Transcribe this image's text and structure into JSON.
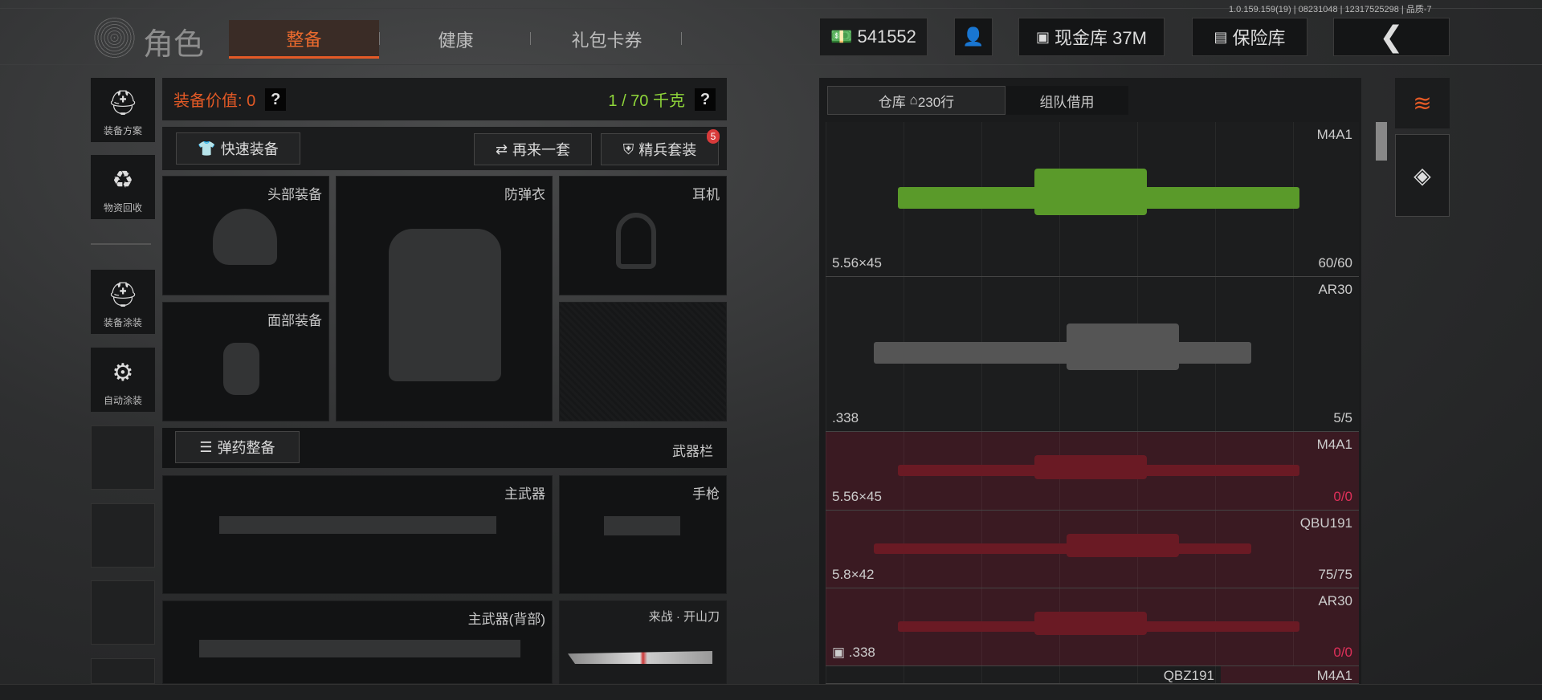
{
  "version_text": "1.0.159.159(19) | 08231048 | 12317525298 | 品质-7",
  "header": {
    "title": "角色",
    "tabs": [
      {
        "label": "整备",
        "active": true
      },
      {
        "label": "健康"
      },
      {
        "label": "礼包卡券"
      }
    ]
  },
  "topbar": {
    "money": "541552",
    "cash_vault": "现金库 37M",
    "safe": "保险库"
  },
  "sidebar": {
    "items": [
      {
        "label": "装备方案"
      },
      {
        "label": "物资回收"
      },
      {
        "label": "装备涂装"
      },
      {
        "label": "自动涂装"
      }
    ]
  },
  "loadout": {
    "value_label": "装备价值: 0",
    "weight_label": "1 / 70 千克",
    "help": "?",
    "quick_equip": "快速装备",
    "again": "再来一套",
    "elite": "精兵套装",
    "elite_badge": "5",
    "slots": {
      "head": "头部装备",
      "vest": "防弹衣",
      "headset": "耳机",
      "face": "面部装备",
      "primary": "主武器",
      "pistol": "手枪",
      "primary_back": "主武器(背部)",
      "melee": "来战 · 开山刀"
    },
    "ammo": "弹药整备",
    "weapon_bar": "武器栏"
  },
  "warehouse": {
    "tabs": [
      {
        "label": "仓库",
        "extra": "230行",
        "active": true
      },
      {
        "label": "组队借用"
      }
    ],
    "items": [
      {
        "name": "M4A1",
        "caliber": "5.56×45",
        "count": "60/60",
        "state": "normal",
        "skin": "green"
      },
      {
        "name": "AR30",
        "caliber": ".338",
        "count": "5/5",
        "state": "normal",
        "skin": "gray"
      },
      {
        "name": "M4A1",
        "caliber": "5.56×45",
        "count": "0/0",
        "state": "red"
      },
      {
        "name": "QBU191",
        "caliber": "5.8×42",
        "count": "75/75",
        "state": "red"
      },
      {
        "name": "AR30",
        "caliber": ".338",
        "count": "0/0",
        "state": "red",
        "locked_icon": true
      }
    ],
    "partial_row": [
      "QBZ191",
      "M4A1"
    ]
  },
  "colors": {
    "accent": "#e45a26",
    "weight": "#8fd63a",
    "zero_count": "#e0305a",
    "red_row": "#3a1a22"
  }
}
